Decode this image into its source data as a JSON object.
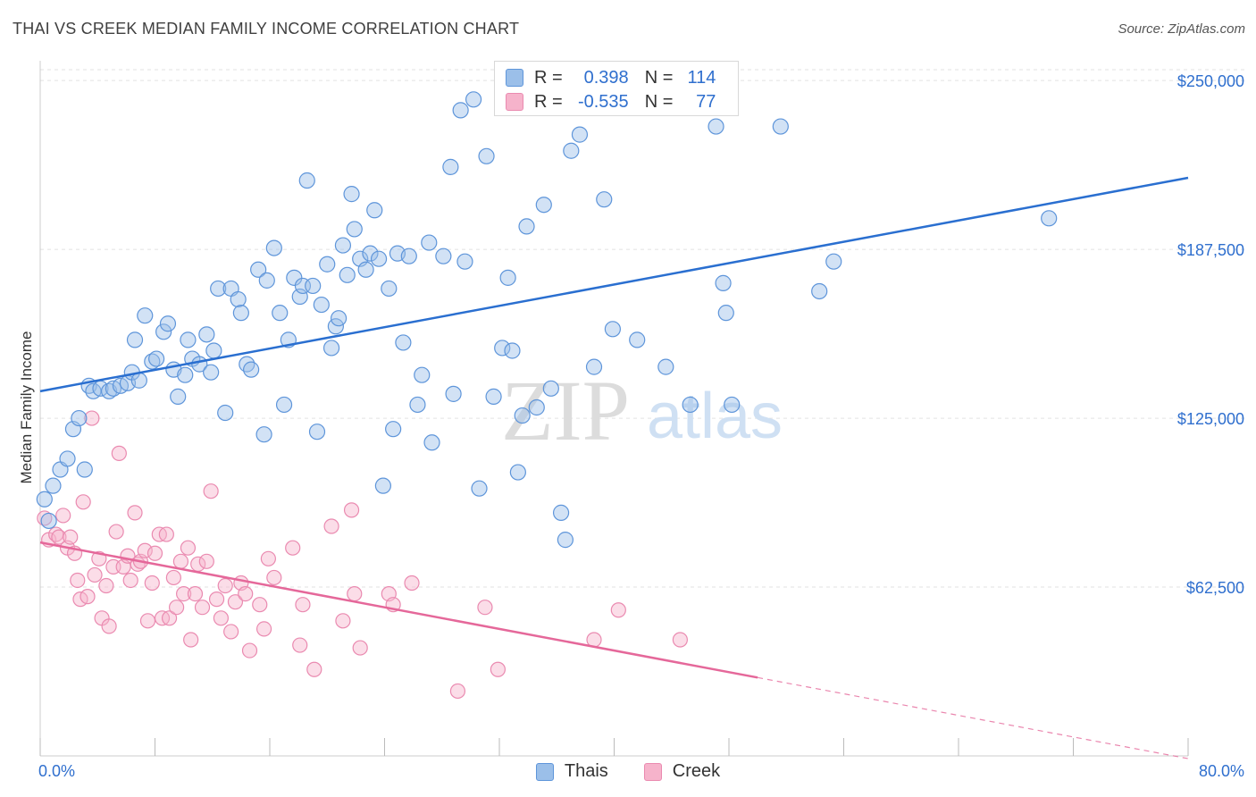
{
  "header": {
    "title": "THAI VS CREEK MEDIAN FAMILY INCOME CORRELATION CHART",
    "source": "Source: ZipAtlas.com"
  },
  "watermark": {
    "zip": "ZIP",
    "atlas": "atlas"
  },
  "legend": {
    "rows": [
      {
        "r_label": "R =",
        "r_value": "0.398",
        "n_label": "N =",
        "n_value": "114",
        "color": "#9bbfe9"
      },
      {
        "r_label": "R =",
        "r_value": "-0.535",
        "n_label": "N =",
        "n_value": "77",
        "color": "#f3a7c2"
      }
    ]
  },
  "bottom_legend": [
    {
      "label": "Thais",
      "color": "#9bbfe9"
    },
    {
      "label": "Creek",
      "color": "#f3a7c2"
    }
  ],
  "colors": {
    "thai_fill": "#9bbfe9",
    "thai_stroke": "#5e95da",
    "thai_line": "#2a6fd0",
    "creek_fill": "#f6b3cb",
    "creek_stroke": "#ea8ab0",
    "creek_line": "#e5689a",
    "axis_label": "#2f6fce"
  },
  "chart_data": {
    "type": "scatter",
    "title": "THAI VS CREEK MEDIAN FAMILY INCOME CORRELATION CHART",
    "xlabel": "",
    "ylabel": "Median Family Income",
    "xlim": [
      0,
      80
    ],
    "ylim": [
      0,
      256000
    ],
    "x_tick_labels": [
      "0.0%",
      "80.0%"
    ],
    "y_ticks": [
      62500,
      125000,
      187500,
      250000
    ],
    "y_tick_labels": [
      "$62,500",
      "$125,000",
      "$187,500",
      "$250,000"
    ],
    "grid": true,
    "legend_position": "top-center",
    "series": [
      {
        "name": "Thais",
        "trend": {
          "x": [
            0,
            80
          ],
          "y": [
            135000,
            214000
          ]
        },
        "points": [
          [
            0.3,
            95000
          ],
          [
            0.6,
            87000
          ],
          [
            0.9,
            100000
          ],
          [
            1.4,
            106000
          ],
          [
            1.9,
            110000
          ],
          [
            2.3,
            121000
          ],
          [
            2.7,
            125000
          ],
          [
            3.1,
            106000
          ],
          [
            3.4,
            137000
          ],
          [
            3.7,
            135000
          ],
          [
            4.2,
            136000
          ],
          [
            4.8,
            135000
          ],
          [
            5.1,
            136000
          ],
          [
            5.6,
            137000
          ],
          [
            6.1,
            138000
          ],
          [
            6.4,
            142000
          ],
          [
            6.6,
            154000
          ],
          [
            6.9,
            139000
          ],
          [
            7.3,
            163000
          ],
          [
            7.8,
            146000
          ],
          [
            8.1,
            147000
          ],
          [
            8.6,
            157000
          ],
          [
            8.9,
            160000
          ],
          [
            9.3,
            143000
          ],
          [
            9.6,
            133000
          ],
          [
            10.1,
            141000
          ],
          [
            10.3,
            154000
          ],
          [
            10.6,
            147000
          ],
          [
            11.1,
            145000
          ],
          [
            11.6,
            156000
          ],
          [
            11.9,
            142000
          ],
          [
            12.1,
            150000
          ],
          [
            12.4,
            173000
          ],
          [
            12.9,
            127000
          ],
          [
            13.3,
            173000
          ],
          [
            13.8,
            169000
          ],
          [
            14.0,
            164000
          ],
          [
            14.4,
            145000
          ],
          [
            14.7,
            143000
          ],
          [
            15.2,
            180000
          ],
          [
            15.6,
            119000
          ],
          [
            15.8,
            176000
          ],
          [
            16.3,
            188000
          ],
          [
            16.7,
            164000
          ],
          [
            17.0,
            130000
          ],
          [
            17.3,
            154000
          ],
          [
            17.7,
            177000
          ],
          [
            18.1,
            170000
          ],
          [
            18.3,
            174000
          ],
          [
            18.6,
            213000
          ],
          [
            19.0,
            174000
          ],
          [
            19.3,
            120000
          ],
          [
            19.6,
            167000
          ],
          [
            20.0,
            182000
          ],
          [
            20.3,
            151000
          ],
          [
            20.6,
            159000
          ],
          [
            20.8,
            162000
          ],
          [
            21.1,
            189000
          ],
          [
            21.4,
            178000
          ],
          [
            21.7,
            208000
          ],
          [
            21.9,
            195000
          ],
          [
            22.3,
            184000
          ],
          [
            22.7,
            180000
          ],
          [
            23.0,
            186000
          ],
          [
            23.3,
            202000
          ],
          [
            23.6,
            184000
          ],
          [
            23.9,
            100000
          ],
          [
            24.3,
            173000
          ],
          [
            24.6,
            121000
          ],
          [
            24.9,
            186000
          ],
          [
            25.3,
            153000
          ],
          [
            25.7,
            185000
          ],
          [
            26.3,
            130000
          ],
          [
            26.6,
            141000
          ],
          [
            27.1,
            190000
          ],
          [
            27.3,
            116000
          ],
          [
            28.1,
            185000
          ],
          [
            28.6,
            218000
          ],
          [
            28.8,
            134000
          ],
          [
            29.3,
            239000
          ],
          [
            29.6,
            183000
          ],
          [
            30.2,
            243000
          ],
          [
            30.6,
            99000
          ],
          [
            31.1,
            222000
          ],
          [
            31.6,
            133000
          ],
          [
            32.2,
            151000
          ],
          [
            32.6,
            177000
          ],
          [
            32.9,
            150000
          ],
          [
            33.3,
            105000
          ],
          [
            33.6,
            126000
          ],
          [
            33.9,
            196000
          ],
          [
            34.6,
            129000
          ],
          [
            35.1,
            204000
          ],
          [
            35.6,
            136000
          ],
          [
            36.3,
            90000
          ],
          [
            36.6,
            80000
          ],
          [
            37.0,
            224000
          ],
          [
            37.6,
            230000
          ],
          [
            38.6,
            144000
          ],
          [
            39.3,
            206000
          ],
          [
            39.9,
            158000
          ],
          [
            41.6,
            154000
          ],
          [
            43.6,
            144000
          ],
          [
            45.3,
            130000
          ],
          [
            47.1,
            233000
          ],
          [
            47.6,
            175000
          ],
          [
            47.8,
            164000
          ],
          [
            48.2,
            130000
          ],
          [
            51.6,
            233000
          ],
          [
            54.3,
            172000
          ],
          [
            55.3,
            183000
          ],
          [
            70.3,
            199000
          ]
        ]
      },
      {
        "name": "Creek",
        "trend": {
          "x": [
            0,
            50
          ],
          "y": [
            79000,
            29000
          ]
        },
        "trend_dashed": {
          "x": [
            50,
            80
          ],
          "y": [
            29000,
            -1000
          ]
        },
        "points": [
          [
            0.3,
            88000
          ],
          [
            0.6,
            80000
          ],
          [
            1.1,
            82000
          ],
          [
            1.3,
            81000
          ],
          [
            1.6,
            89000
          ],
          [
            1.9,
            77000
          ],
          [
            2.1,
            81000
          ],
          [
            2.4,
            75000
          ],
          [
            2.6,
            65000
          ],
          [
            2.8,
            58000
          ],
          [
            3.0,
            94000
          ],
          [
            3.3,
            59000
          ],
          [
            3.6,
            125000
          ],
          [
            3.8,
            67000
          ],
          [
            4.1,
            73000
          ],
          [
            4.3,
            51000
          ],
          [
            4.6,
            63000
          ],
          [
            4.8,
            48000
          ],
          [
            5.1,
            70000
          ],
          [
            5.3,
            83000
          ],
          [
            5.5,
            112000
          ],
          [
            5.8,
            70000
          ],
          [
            6.1,
            74000
          ],
          [
            6.3,
            65000
          ],
          [
            6.6,
            90000
          ],
          [
            6.8,
            71000
          ],
          [
            7.0,
            72000
          ],
          [
            7.3,
            76000
          ],
          [
            7.5,
            50000
          ],
          [
            7.8,
            64000
          ],
          [
            8.0,
            75000
          ],
          [
            8.3,
            82000
          ],
          [
            8.5,
            51000
          ],
          [
            8.8,
            82000
          ],
          [
            9.0,
            51000
          ],
          [
            9.3,
            66000
          ],
          [
            9.5,
            55000
          ],
          [
            9.8,
            72000
          ],
          [
            10.0,
            60000
          ],
          [
            10.3,
            77000
          ],
          [
            10.5,
            43000
          ],
          [
            10.8,
            60000
          ],
          [
            11.0,
            71000
          ],
          [
            11.3,
            55000
          ],
          [
            11.6,
            72000
          ],
          [
            11.9,
            98000
          ],
          [
            12.3,
            58000
          ],
          [
            12.6,
            51000
          ],
          [
            12.9,
            63000
          ],
          [
            13.3,
            46000
          ],
          [
            13.6,
            57000
          ],
          [
            14.0,
            64000
          ],
          [
            14.3,
            60000
          ],
          [
            14.6,
            39000
          ],
          [
            15.3,
            56000
          ],
          [
            15.6,
            47000
          ],
          [
            15.9,
            73000
          ],
          [
            16.3,
            66000
          ],
          [
            17.6,
            77000
          ],
          [
            18.1,
            41000
          ],
          [
            18.3,
            56000
          ],
          [
            19.1,
            32000
          ],
          [
            20.3,
            85000
          ],
          [
            21.1,
            50000
          ],
          [
            21.7,
            91000
          ],
          [
            21.9,
            60000
          ],
          [
            22.3,
            40000
          ],
          [
            24.3,
            60000
          ],
          [
            24.6,
            56000
          ],
          [
            25.9,
            64000
          ],
          [
            29.1,
            24000
          ],
          [
            31.0,
            55000
          ],
          [
            31.9,
            32000
          ],
          [
            38.6,
            43000
          ],
          [
            40.3,
            54000
          ],
          [
            44.6,
            43000
          ]
        ]
      }
    ]
  }
}
